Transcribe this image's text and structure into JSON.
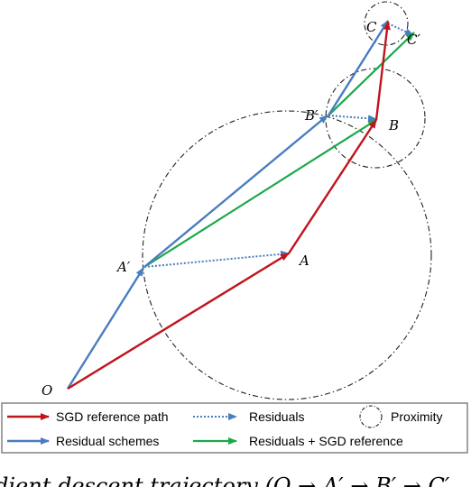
{
  "diagram": {
    "points": {
      "O": "O",
      "A": "A",
      "A_prime": "A′",
      "B": "B",
      "B_prime": "B′",
      "C": "C",
      "C_prime": "C′"
    },
    "legend": {
      "sgd_reference_path": "SGD reference path",
      "residuals": "Residuals",
      "proximity": "Proximity",
      "residual_schemes": "Residual schemes",
      "residuals_plus_sgd": "Residuals + SGD reference"
    },
    "caption_fragment": "dient descent trajectory (O → A′ → B′ → C′"
  },
  "colors": {
    "sgd_reference": "#c0141c",
    "residual_schemes": "#4a7cc0",
    "residuals": "#4a7cc0",
    "residuals_plus_sgd": "#1aa84a",
    "proximity": "#222222"
  }
}
